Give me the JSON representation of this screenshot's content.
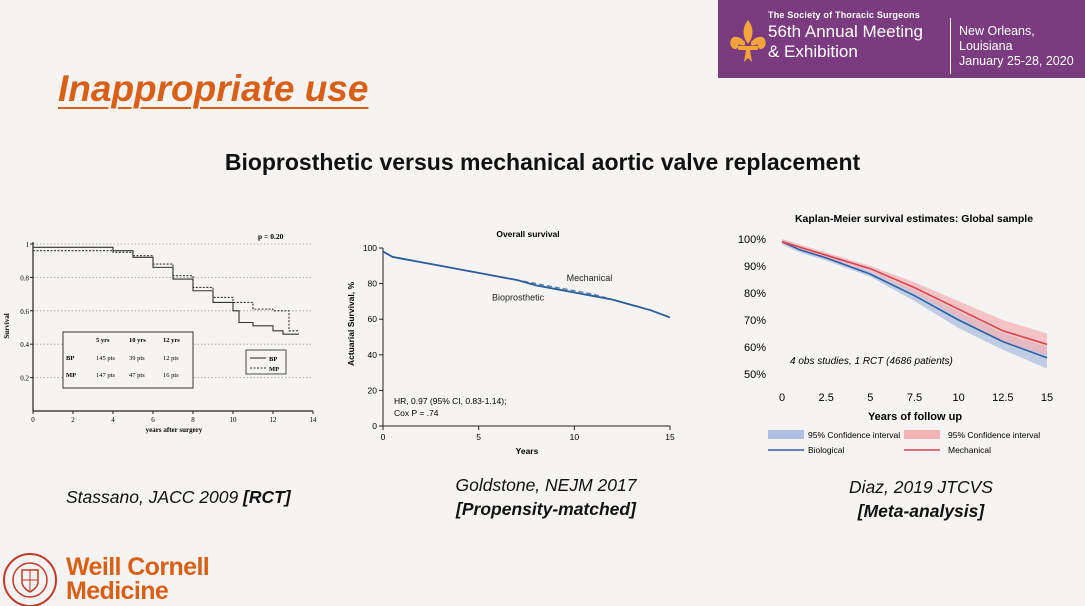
{
  "header": {
    "org": "The Society of Thoracic Surgeons",
    "meeting_line1": "56th Annual Meeting",
    "meeting_line2": "& Exhibition",
    "city": "New Orleans, Louisiana",
    "dates": "January 25-28, 2020",
    "colors": {
      "banner": "#7b3b7f",
      "accent": "#f2a33a"
    }
  },
  "slide": {
    "title": "Inappropriate use",
    "subtitle": "Bioprosthetic versus mechanical aortic valve replacement"
  },
  "footer": {
    "logo_line1": "Weill Cornell",
    "logo_line2": "Medicine",
    "color": "#d95f17"
  },
  "captions": {
    "c1": {
      "text": "Stassano, JACC 2009 ",
      "bold": "[RCT]"
    },
    "c2": {
      "line1": "Goldstone, NEJM 2017",
      "line2": "[Propensity-matched]"
    },
    "c3": {
      "line1": "Diaz, 2019 JTCVS",
      "line2": "[Meta-analysis]"
    }
  },
  "chart_data": [
    {
      "type": "line",
      "title": "",
      "annotation": "p = 0.20",
      "xlabel": "years after surgery",
      "ylabel": "Survival",
      "xlim": [
        0,
        14
      ],
      "ylim": [
        0,
        1
      ],
      "xticks": [
        0,
        2,
        4,
        6,
        8,
        10,
        12,
        14
      ],
      "yticks": [
        0.2,
        0.4,
        0.6,
        0.8,
        1
      ],
      "grid": "horizontal dotted",
      "series": [
        {
          "name": "BP",
          "style": "solid",
          "x": [
            0,
            2,
            4,
            5,
            6,
            7,
            8,
            9,
            10,
            10.3,
            11,
            12,
            12.5,
            13.3
          ],
          "values": [
            0.98,
            0.98,
            0.96,
            0.92,
            0.86,
            0.79,
            0.72,
            0.65,
            0.6,
            0.53,
            0.51,
            0.48,
            0.46,
            0.46
          ]
        },
        {
          "name": "MP",
          "style": "dotted",
          "x": [
            0,
            2,
            4,
            5,
            6,
            7,
            8,
            9,
            10,
            11,
            12,
            12.8,
            13.3
          ],
          "values": [
            0.96,
            0.96,
            0.95,
            0.93,
            0.88,
            0.81,
            0.74,
            0.68,
            0.65,
            0.61,
            0.6,
            0.48,
            0.48
          ]
        }
      ],
      "table": {
        "headers": [
          "",
          "5 yrs",
          "10 yrs",
          "12 yrs"
        ],
        "rows": [
          [
            "BP",
            "145 pts",
            "39 pts",
            "12 pts"
          ],
          [
            "MP",
            "147 pts",
            "47 pts",
            "16 pts"
          ]
        ]
      },
      "legend": [
        "BP",
        "MP"
      ],
      "legend_position": "bottom-right"
    },
    {
      "type": "line",
      "title": "Overall survival",
      "xlabel": "Years",
      "ylabel": "Actuarial Survival, %",
      "xlim": [
        0,
        15
      ],
      "ylim": [
        0,
        100
      ],
      "xticks": [
        0,
        5,
        10,
        15
      ],
      "yticks": [
        0,
        20,
        40,
        60,
        80,
        100
      ],
      "series": [
        {
          "name": "Mechanical",
          "style": "dashed",
          "x": [
            0,
            0.5,
            1,
            2,
            3,
            4,
            5,
            6,
            7,
            8,
            9,
            10,
            11,
            12,
            13,
            14,
            15
          ],
          "values": [
            98,
            95,
            94,
            92,
            90,
            88,
            86,
            84,
            82,
            80,
            78,
            76,
            74,
            71,
            68,
            65,
            61
          ]
        },
        {
          "name": "Bioprosthetic",
          "style": "solid",
          "x": [
            0,
            0.5,
            1,
            2,
            3,
            4,
            5,
            6,
            7,
            8,
            9,
            10,
            11,
            12,
            13,
            14,
            15
          ],
          "values": [
            98,
            95,
            94,
            92,
            90,
            88,
            86,
            84,
            82,
            79,
            77,
            75,
            73,
            71,
            68,
            65,
            61
          ]
        }
      ],
      "annotation_line1": "HR, 0.97 (95% CI, 0.83-1.14);",
      "annotation_line2": "Cox P = .74",
      "colors": {
        "line": "#2b5d9a"
      }
    },
    {
      "type": "area",
      "title": "Kaplan-Meier survival estimates: Global sample",
      "xlabel": "Years of follow up",
      "ylabel": "",
      "xlim": [
        0,
        15
      ],
      "ylim": [
        0.5,
        1
      ],
      "xticks": [
        "0",
        "2.5",
        "5",
        "7.5",
        "10",
        "12.5",
        "15"
      ],
      "yticks": [
        "50%",
        "60%",
        "70%",
        "80%",
        "90%",
        "100%"
      ],
      "annotation": "4 obs studies, 1 RCT (4686 patients)",
      "series": [
        {
          "name": "Biological",
          "x": [
            0,
            1,
            2.5,
            5,
            7.5,
            10,
            12.5,
            15
          ],
          "values": [
            0.99,
            0.96,
            0.93,
            0.87,
            0.79,
            0.7,
            0.62,
            0.56
          ],
          "ci_low": [
            0.98,
            0.95,
            0.92,
            0.86,
            0.77,
            0.67,
            0.59,
            0.52
          ],
          "ci_high": [
            1.0,
            0.97,
            0.94,
            0.88,
            0.81,
            0.73,
            0.65,
            0.6
          ]
        },
        {
          "name": "Mechanical",
          "x": [
            0,
            1,
            2.5,
            5,
            7.5,
            10,
            12.5,
            15
          ],
          "values": [
            0.99,
            0.97,
            0.94,
            0.89,
            0.82,
            0.74,
            0.66,
            0.61
          ],
          "ci_low": [
            0.98,
            0.96,
            0.93,
            0.88,
            0.8,
            0.71,
            0.62,
            0.57
          ],
          "ci_high": [
            1.0,
            0.98,
            0.95,
            0.9,
            0.84,
            0.77,
            0.7,
            0.65
          ]
        }
      ],
      "legend": [
        "95% Confidence interval",
        "95% Confidence interval",
        "Biological",
        "Mechanical"
      ],
      "legend_position": "bottom",
      "colors": {
        "Biological": "#2f5fa8",
        "Biological_ci": "#aebfdf",
        "Mechanical": "#d9444f",
        "Mechanical_ci": "#f1b3b6"
      }
    }
  ]
}
